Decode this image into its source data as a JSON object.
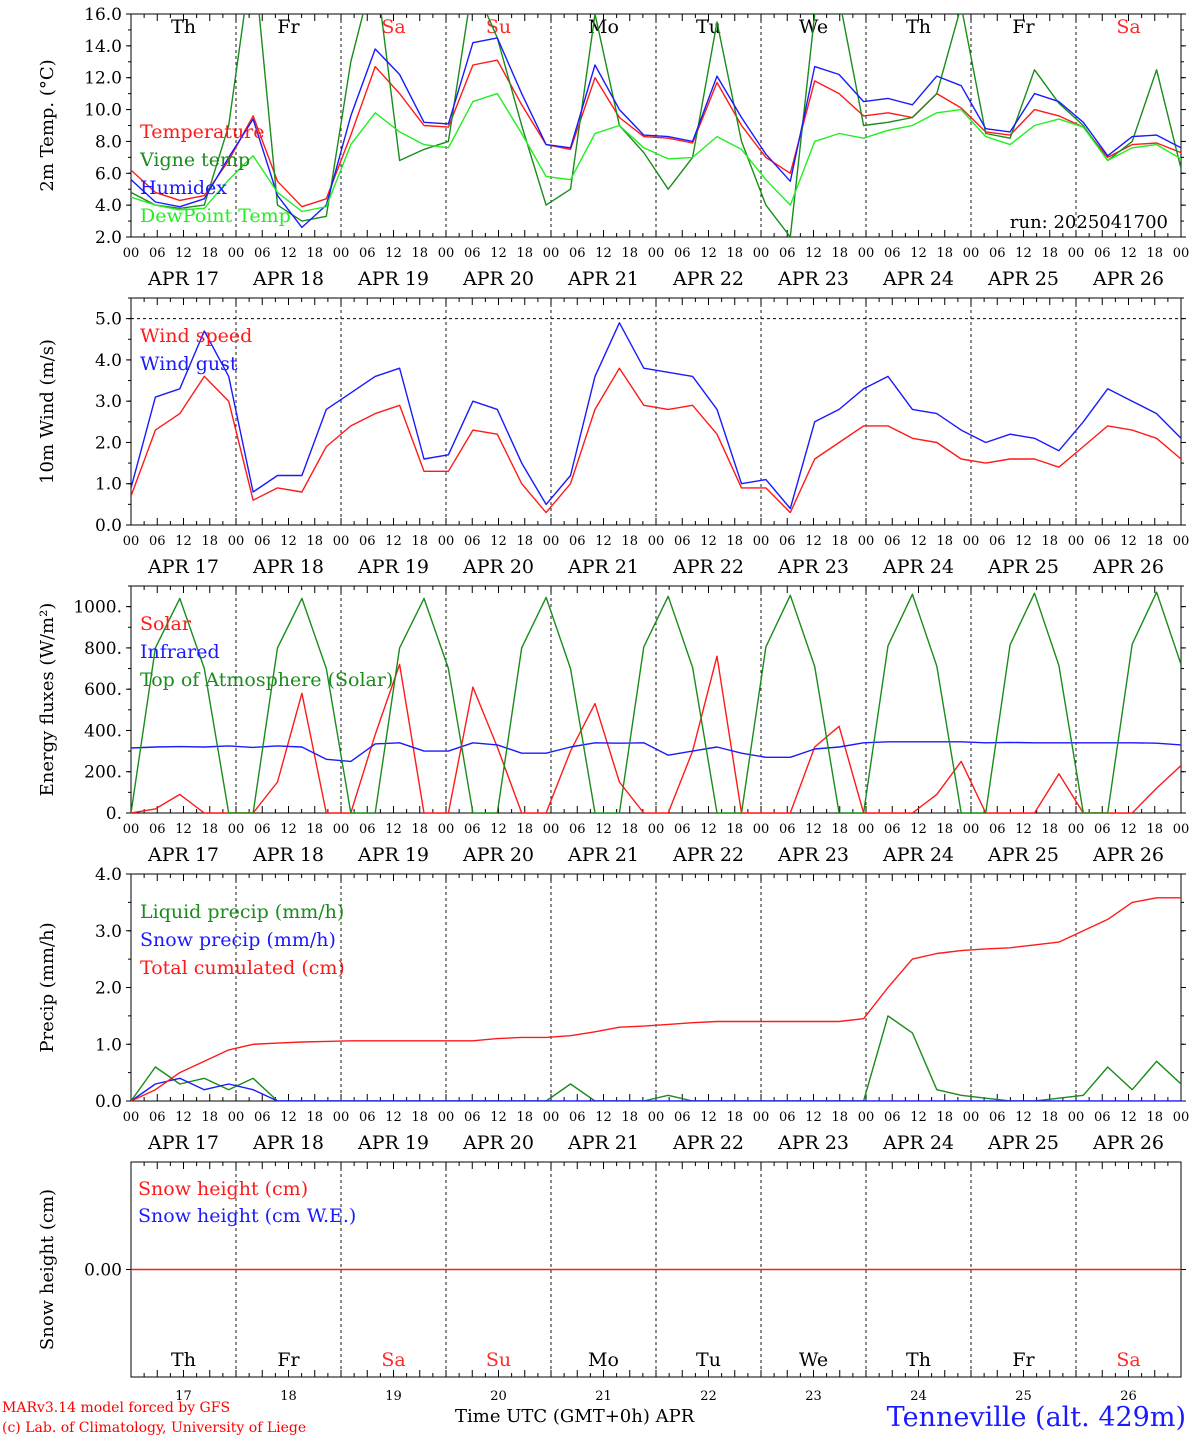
{
  "days": {
    "weekday_labels": [
      "Th",
      "Fr",
      "Sa",
      "Su",
      "Mo",
      "Tu",
      "We",
      "Th",
      "Fr",
      "Sa"
    ],
    "weekend_flags": [
      false,
      false,
      true,
      true,
      false,
      false,
      false,
      false,
      false,
      true
    ],
    "date_labels": [
      "APR 17",
      "APR 18",
      "APR 19",
      "APR 20",
      "APR 21",
      "APR 22",
      "APR 23",
      "APR 24",
      "APR 25",
      "APR 26"
    ],
    "day_numbers": [
      "17",
      "18",
      "19",
      "20",
      "21",
      "22",
      "23",
      "24",
      "25",
      "26"
    ],
    "hour_labels": [
      "00",
      "06",
      "12",
      "18"
    ],
    "final_hour_label": "00"
  },
  "colors": {
    "red": "#ff1a1a",
    "dark_green": "#1a8c1a",
    "blue": "#1a1aff",
    "light_green": "#22ee22",
    "weekend": "#ff2a2a"
  },
  "footer": {
    "credit_line_1": "MARv3.14 model forced by GFS",
    "credit_line_2": "(c) Lab. of Climatology, University of Liege",
    "xlabel": "Time UTC (GMT+0h) APR",
    "station": "Tenneville (alt. 429m)"
  },
  "chart_data": [
    {
      "type": "line",
      "ylabel": "2m Temp. (°C)",
      "ylim": [
        2,
        16
      ],
      "yticks": [
        "2.0",
        "4.0",
        "6.0",
        "8.0",
        "10.0",
        "12.0",
        "14.0",
        "16.0"
      ],
      "yticks_values": [
        2,
        4,
        6,
        8,
        10,
        12,
        14,
        16
      ],
      "annotation": "run: 2025041700",
      "x_hours_step": 6,
      "series": [
        {
          "name": "Temperature",
          "color": "red",
          "values": [
            6.2,
            4.8,
            4.3,
            4.6,
            6.8,
            9.6,
            5.5,
            3.9,
            4.4,
            8.4,
            12.7,
            11.0,
            9.0,
            8.9,
            12.8,
            13.1,
            10.3,
            7.8,
            7.5,
            12.0,
            9.5,
            8.3,
            8.2,
            7.9,
            11.7,
            9.0,
            7.0,
            6.0,
            11.8,
            11.0,
            9.6,
            9.8,
            9.5,
            11.0,
            10.1,
            8.6,
            8.4,
            10.0,
            9.6,
            8.9,
            7.0,
            7.8,
            7.9,
            7.3
          ]
        },
        {
          "name": "Vigne temp",
          "color": "dark_green",
          "values": [
            4.8,
            4.0,
            3.8,
            4.0,
            9.0,
            20.0,
            4.0,
            3.0,
            3.3,
            13.0,
            19.0,
            6.8,
            7.5,
            8.0,
            18.0,
            14.5,
            9.0,
            4.0,
            5.0,
            16.0,
            9.0,
            7.3,
            5.0,
            7.0,
            15.5,
            8.0,
            4.0,
            2.0,
            16.0,
            17.0,
            9.0,
            9.2,
            9.5,
            11.0,
            16.5,
            8.5,
            8.2,
            12.5,
            10.4,
            9.0,
            6.8,
            8.0,
            12.5,
            6.3
          ]
        },
        {
          "name": "Humidex",
          "color": "blue",
          "values": [
            5.6,
            4.2,
            3.9,
            4.4,
            7.0,
            9.4,
            4.6,
            2.6,
            4.0,
            9.6,
            13.8,
            12.2,
            9.2,
            9.1,
            14.2,
            14.5,
            11.0,
            7.8,
            7.6,
            12.8,
            10.0,
            8.4,
            8.3,
            8.0,
            12.1,
            9.5,
            7.2,
            5.5,
            12.7,
            12.2,
            10.5,
            10.7,
            10.3,
            12.1,
            11.5,
            8.8,
            8.6,
            11.0,
            10.5,
            9.2,
            7.1,
            8.3,
            8.4,
            7.6
          ]
        },
        {
          "name": "DewPoint Temp",
          "color": "light_green",
          "values": [
            4.5,
            4.0,
            3.7,
            3.8,
            5.6,
            7.1,
            4.8,
            3.6,
            3.9,
            7.8,
            9.8,
            8.6,
            7.8,
            7.6,
            10.5,
            11.0,
            8.5,
            5.8,
            5.6,
            8.5,
            9.0,
            7.6,
            6.9,
            7.0,
            8.3,
            7.5,
            5.6,
            4.0,
            8.0,
            8.5,
            8.2,
            8.7,
            9.0,
            9.8,
            10.0,
            8.3,
            7.8,
            9.0,
            9.4,
            8.9,
            6.8,
            7.6,
            7.8,
            6.9
          ]
        }
      ]
    },
    {
      "type": "line",
      "ylabel": "10m Wind (m/s)",
      "ylim": [
        0,
        5.5
      ],
      "yticks": [
        "0.0",
        "1.0",
        "2.0",
        "3.0",
        "4.0",
        "5.0"
      ],
      "yticks_values": [
        0,
        1,
        2,
        3,
        4,
        5
      ],
      "dashed_reference": 5.0,
      "x_hours_step": 6,
      "series": [
        {
          "name": "Wind speed",
          "color": "red",
          "values": [
            0.7,
            2.3,
            2.7,
            3.6,
            3.0,
            0.6,
            0.9,
            0.8,
            1.9,
            2.4,
            2.7,
            2.9,
            1.3,
            1.3,
            2.3,
            2.2,
            1.0,
            0.3,
            1.0,
            2.8,
            3.8,
            2.9,
            2.8,
            2.9,
            2.2,
            0.9,
            0.9,
            0.3,
            1.6,
            2.0,
            2.4,
            2.4,
            2.1,
            2.0,
            1.6,
            1.5,
            1.6,
            1.6,
            1.4,
            1.9,
            2.4,
            2.3,
            2.1,
            1.6
          ]
        },
        {
          "name": "Wind gust",
          "color": "blue",
          "values": [
            0.9,
            3.1,
            3.3,
            4.7,
            3.6,
            0.8,
            1.2,
            1.2,
            2.8,
            3.2,
            3.6,
            3.8,
            1.6,
            1.7,
            3.0,
            2.8,
            1.5,
            0.5,
            1.2,
            3.6,
            4.9,
            3.8,
            3.7,
            3.6,
            2.8,
            1.0,
            1.1,
            0.4,
            2.5,
            2.8,
            3.3,
            3.6,
            2.8,
            2.7,
            2.3,
            2.0,
            2.2,
            2.1,
            1.8,
            2.5,
            3.3,
            3.0,
            2.7,
            2.1
          ]
        }
      ]
    },
    {
      "type": "line",
      "ylabel": "Energy fluxes (W/m²)",
      "ylim": [
        0,
        1100
      ],
      "yticks": [
        "0.",
        "200.",
        "400.",
        "600.",
        "800.",
        "1000."
      ],
      "yticks_values": [
        0,
        200,
        400,
        600,
        800,
        1000
      ],
      "x_hours_step": 6,
      "series": [
        {
          "name": "Solar",
          "color": "red",
          "values": [
            0,
            20,
            90,
            0,
            0,
            0,
            150,
            580,
            0,
            0,
            380,
            720,
            0,
            0,
            610,
            320,
            0,
            0,
            300,
            530,
            150,
            0,
            0,
            300,
            760,
            0,
            0,
            0,
            320,
            420,
            0,
            0,
            0,
            90,
            250,
            0,
            0,
            0,
            190,
            0,
            0,
            0,
            120,
            230
          ]
        },
        {
          "name": "Infrared",
          "color": "blue",
          "values": [
            315,
            320,
            322,
            320,
            325,
            318,
            325,
            320,
            260,
            250,
            335,
            340,
            300,
            300,
            340,
            330,
            290,
            290,
            320,
            340,
            338,
            340,
            280,
            300,
            320,
            290,
            270,
            270,
            310,
            320,
            340,
            345,
            345,
            345,
            345,
            340,
            342,
            340,
            340,
            340,
            340,
            340,
            338,
            330
          ]
        },
        {
          "name": "Top of Atmosphere (Solar)",
          "color": "dark_green",
          "values": [
            0,
            800,
            1040,
            700,
            0,
            0,
            800,
            1040,
            700,
            0,
            0,
            800,
            1040,
            700,
            0,
            0,
            800,
            1045,
            700,
            0,
            0,
            805,
            1050,
            705,
            0,
            0,
            805,
            1055,
            710,
            0,
            0,
            810,
            1060,
            712,
            0,
            0,
            815,
            1065,
            715,
            0,
            0,
            818,
            1070,
            720
          ]
        }
      ]
    },
    {
      "type": "line",
      "ylabel": "Precip (mm/h)",
      "ylim": [
        0,
        4
      ],
      "yticks": [
        "0.0",
        "1.0",
        "2.0",
        "3.0",
        "4.0"
      ],
      "yticks_values": [
        0,
        1,
        2,
        3,
        4
      ],
      "x_hours_step": 6,
      "series": [
        {
          "name": "Liquid precip (mm/h)",
          "color": "dark_green",
          "values": [
            0,
            0.6,
            0.3,
            0.4,
            0.2,
            0.4,
            0,
            0,
            0,
            0,
            0,
            0,
            0,
            0,
            0,
            0,
            0,
            0,
            0.3,
            0,
            0,
            0,
            0.1,
            0,
            0,
            0,
            0,
            0,
            0,
            0,
            0,
            1.5,
            1.2,
            0.2,
            0.1,
            0.05,
            0,
            0,
            0.05,
            0.1,
            0.6,
            0.2,
            0.7,
            0.3
          ]
        },
        {
          "name": "Snow precip (mm/h)",
          "color": "blue",
          "values": [
            0,
            0.3,
            0.4,
            0.2,
            0.3,
            0.2,
            0,
            0,
            0,
            0,
            0,
            0,
            0,
            0,
            0,
            0,
            0,
            0,
            0,
            0,
            0,
            0,
            0,
            0,
            0,
            0,
            0,
            0,
            0,
            0,
            0,
            0,
            0,
            0,
            0,
            0,
            0,
            0,
            0,
            0,
            0,
            0,
            0,
            0
          ]
        },
        {
          "name": "Total cumulated (cm)",
          "color": "red",
          "values": [
            0,
            0.2,
            0.5,
            0.7,
            0.9,
            1.0,
            1.02,
            1.04,
            1.05,
            1.06,
            1.06,
            1.06,
            1.06,
            1.06,
            1.06,
            1.1,
            1.12,
            1.12,
            1.15,
            1.22,
            1.3,
            1.32,
            1.35,
            1.38,
            1.4,
            1.4,
            1.4,
            1.4,
            1.4,
            1.4,
            1.45,
            2.0,
            2.5,
            2.6,
            2.65,
            2.68,
            2.7,
            2.75,
            2.8,
            3.0,
            3.2,
            3.5,
            3.58,
            3.58
          ]
        }
      ]
    },
    {
      "type": "line",
      "ylabel": "Snow height (cm)",
      "ylim": [
        -1,
        1
      ],
      "yticks": [
        "0.00"
      ],
      "yticks_values": [
        0
      ],
      "x_hours_step": 6,
      "series": [
        {
          "name": "Snow height (cm)",
          "color": "red",
          "values": [
            0,
            0,
            0,
            0,
            0,
            0,
            0,
            0,
            0,
            0,
            0,
            0,
            0,
            0,
            0,
            0,
            0,
            0,
            0,
            0,
            0,
            0,
            0,
            0,
            0,
            0,
            0,
            0,
            0,
            0,
            0,
            0,
            0,
            0,
            0,
            0,
            0,
            0,
            0,
            0,
            0,
            0,
            0,
            0
          ]
        },
        {
          "name": "Snow height (cm W.E.)",
          "color": "blue",
          "values": []
        }
      ]
    }
  ]
}
